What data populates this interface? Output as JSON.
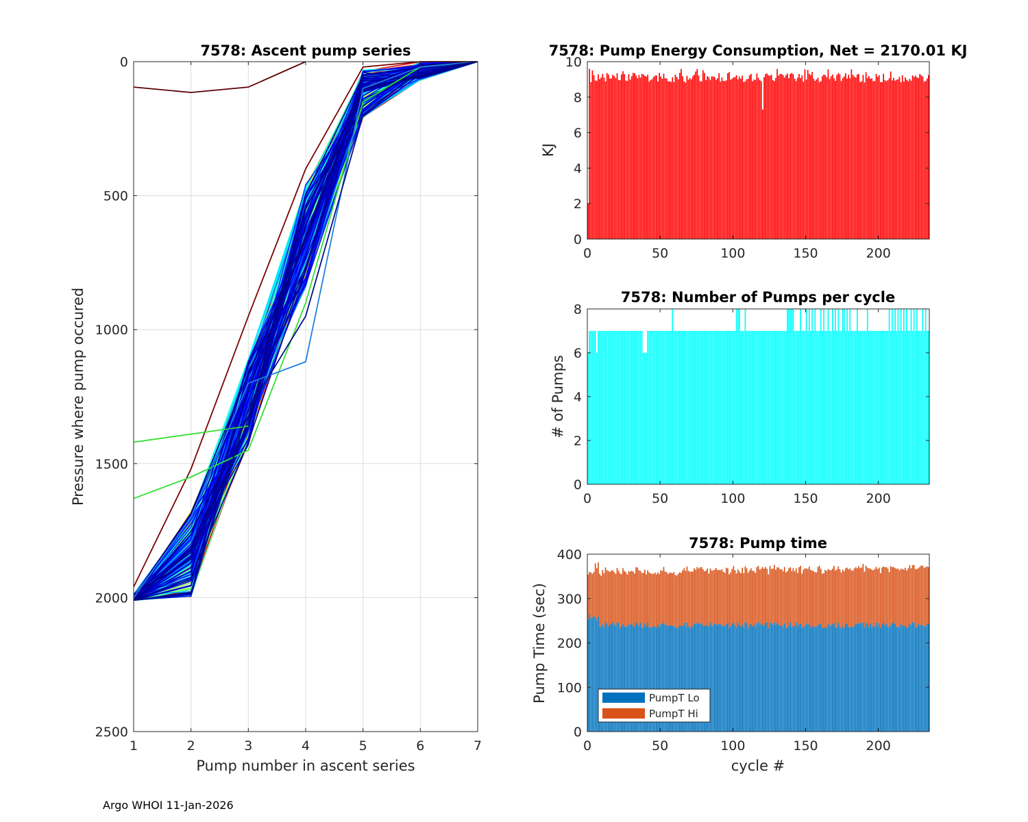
{
  "footer": "Argo WHOI 11-Jan-2026",
  "chart_data": [
    {
      "id": "ascent",
      "type": "line",
      "title": "7578: Ascent pump series",
      "xlabel": "Pump number in ascent series",
      "ylabel": "Pressure where pump occured",
      "xlim": [
        1,
        7
      ],
      "ylim": [
        0,
        2500
      ],
      "y_reversed": true,
      "xticks": [
        1,
        2,
        3,
        4,
        5,
        6,
        7
      ],
      "yticks": [
        0,
        500,
        1000,
        1500,
        2000,
        2500
      ],
      "grid": true,
      "colormap": "jet",
      "series_count": 236,
      "typical_pressures": [
        2005,
        1840,
        1270,
        650,
        120,
        35,
        0
      ],
      "highlighted_series": [
        {
          "color": "#5a0000",
          "pressures": [
            95,
            115,
            95,
            0
          ]
        },
        {
          "color": "#7a0000",
          "pressures": [
            1960,
            1520,
            950,
            400,
            20,
            0,
            0
          ]
        },
        {
          "color": "#30e030",
          "pressures": [
            1420,
            1390,
            1360
          ]
        },
        {
          "color": "#30e030",
          "pressures": [
            1630,
            1550,
            1450,
            900,
            150,
            20,
            0
          ]
        },
        {
          "color": "#1f7fe0",
          "pressures": [
            2000,
            1700,
            1200,
            1120,
            100,
            20,
            0
          ]
        },
        {
          "color": "#00108a",
          "pressures": [
            2010,
            1980,
            1300,
            950,
            200,
            30,
            0
          ]
        }
      ]
    },
    {
      "id": "energy",
      "type": "bar",
      "title": "7578: Pump Energy Consumption,  Net = 2170.01 KJ",
      "xlabel": "",
      "ylabel": "KJ",
      "xlim": [
        0,
        235
      ],
      "ylim": [
        0,
        10
      ],
      "xticks": [
        0,
        50,
        100,
        150,
        200
      ],
      "yticks": [
        0,
        2,
        4,
        6,
        8,
        10
      ],
      "color": "#ff0000",
      "n_cycles": 235,
      "typical_value": 9.1,
      "value_range": [
        8.6,
        9.6
      ],
      "anomalies": [
        {
          "cycle": 0,
          "value": 2.0
        },
        {
          "cycle": 120,
          "value": 7.3
        },
        {
          "cycle": 119,
          "value": 8.9
        }
      ]
    },
    {
      "id": "numpumps",
      "type": "bar",
      "title": "7578: Number of Pumps per cycle",
      "xlabel": "",
      "ylabel": "# of Pumps",
      "xlim": [
        0,
        235
      ],
      "ylim": [
        0,
        8
      ],
      "xticks": [
        0,
        50,
        100,
        150,
        200
      ],
      "yticks": [
        0,
        2,
        4,
        6,
        8
      ],
      "color": "#00ffff",
      "n_cycles": 235,
      "typical_value": 7,
      "eight_pump_cycles": [
        58,
        102,
        103,
        104,
        108,
        137,
        138,
        139,
        140,
        141,
        146,
        150,
        152,
        154,
        156,
        160,
        162,
        165,
        168,
        170,
        172,
        175,
        176,
        178,
        180,
        185,
        192,
        207,
        209,
        211,
        213,
        215,
        217,
        219,
        222,
        224,
        226,
        230,
        232
      ],
      "six_pump_cycles": [
        0,
        6,
        38,
        39,
        40
      ]
    },
    {
      "id": "pumptime",
      "type": "bar",
      "stacked": true,
      "title": "7578: Pump time",
      "xlabel": "cycle #",
      "ylabel": "Pump Time (sec)",
      "xlim": [
        0,
        235
      ],
      "ylim": [
        0,
        400
      ],
      "xticks": [
        0,
        50,
        100,
        150,
        200
      ],
      "yticks": [
        0,
        100,
        200,
        300,
        400
      ],
      "n_cycles": 235,
      "series": [
        {
          "name": "PumpT Lo",
          "color": "#0072bd",
          "typical_value": 240,
          "start_value": 258,
          "end_value": 240
        },
        {
          "name": "PumpT Hi",
          "color": "#d95319",
          "typical_value": 120,
          "start_value": 100,
          "end_value": 130
        }
      ],
      "legend": "bottom-left"
    }
  ]
}
